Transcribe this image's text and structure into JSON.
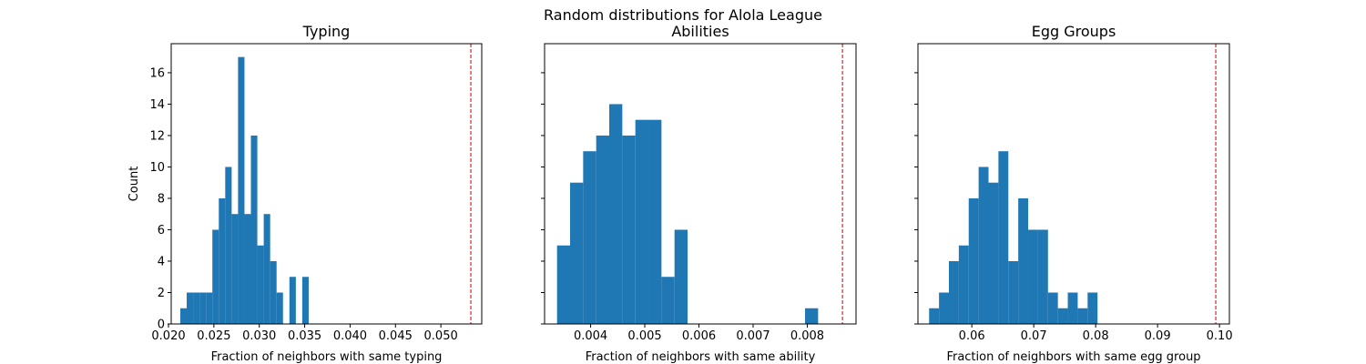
{
  "figure_title": "Random distributions for Alola League",
  "colors": {
    "bar": "#1f77b4",
    "reference_line": "#d62728",
    "axes": "#000000"
  },
  "chart_data": [
    {
      "type": "bar",
      "title": "Typing",
      "xlabel": "Fraction of neighbors with same typing",
      "ylabel": "Count",
      "xlim": [
        0.0203,
        0.0545
      ],
      "ylim": [
        0,
        17.85
      ],
      "xticks": [
        0.02,
        0.025,
        0.03,
        0.035,
        0.04,
        0.045,
        0.05
      ],
      "xtick_labels": [
        "0.020",
        "0.025",
        "0.030",
        "0.035",
        "0.040",
        "0.045",
        "0.050"
      ],
      "yticks": [
        0,
        2,
        4,
        6,
        8,
        10,
        12,
        14,
        16
      ],
      "ytick_labels": [
        "0",
        "2",
        "4",
        "6",
        "8",
        "10",
        "12",
        "14",
        "16"
      ],
      "bin_start": 0.0213,
      "bin_width": 0.000707,
      "counts": [
        1,
        2,
        2,
        2,
        2,
        6,
        8,
        10,
        7,
        17,
        7,
        12,
        5,
        7,
        4,
        2,
        0,
        3,
        0,
        3
      ],
      "reference_line": 0.0533
    },
    {
      "type": "bar",
      "title": "Abilities",
      "xlabel": "Fraction of neighbors with same ability",
      "ylabel": "",
      "xlim": [
        0.00315,
        0.0089
      ],
      "ylim": [
        0,
        17.85
      ],
      "xticks": [
        0.004,
        0.005,
        0.006,
        0.007,
        0.008
      ],
      "xtick_labels": [
        "0.004",
        "0.005",
        "0.006",
        "0.007",
        "0.008"
      ],
      "yticks": [
        0,
        2,
        4,
        6,
        8,
        10,
        12,
        14,
        16
      ],
      "ytick_labels": [
        "",
        "",
        "",
        "",
        "",
        "",
        "",
        "",
        ""
      ],
      "bin_start": 0.00338,
      "bin_width": 0.000241,
      "counts": [
        5,
        9,
        11,
        12,
        14,
        12,
        13,
        13,
        3,
        6,
        0,
        0,
        0,
        0,
        0,
        0,
        0,
        0,
        0,
        1
      ],
      "reference_line": 0.00865
    },
    {
      "type": "bar",
      "title": "Egg Groups",
      "xlabel": "Fraction of neighbors with same egg group",
      "ylabel": "",
      "xlim": [
        0.0513,
        0.1016
      ],
      "ylim": [
        0,
        17.85
      ],
      "xticks": [
        0.06,
        0.07,
        0.08,
        0.09,
        0.1
      ],
      "xtick_labels": [
        "0.06",
        "0.07",
        "0.08",
        "0.09",
        "0.10"
      ],
      "yticks": [
        0,
        2,
        4,
        6,
        8,
        10,
        12,
        14,
        16
      ],
      "ytick_labels": [
        "",
        "",
        "",
        "",
        "",
        "",
        "",
        "",
        ""
      ],
      "bin_start": 0.0531,
      "bin_width": 0.0016,
      "counts": [
        1,
        2,
        4,
        5,
        8,
        10,
        9,
        11,
        4,
        8,
        6,
        6,
        2,
        1,
        2,
        1,
        2
      ],
      "reference_line": 0.0994
    }
  ]
}
